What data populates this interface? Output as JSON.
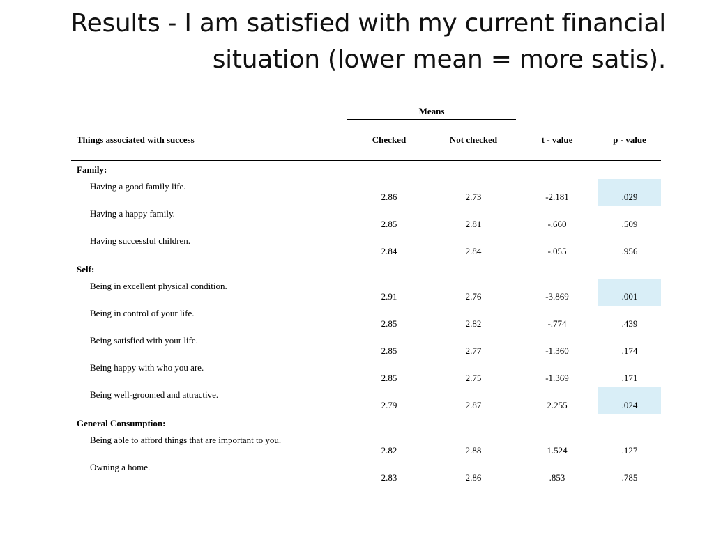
{
  "title": "Results - I am satisfied with my current financial situation (lower mean = more satis).",
  "highlight_color": "#d9eef7",
  "table": {
    "means_label": "Means",
    "headers": {
      "label": "Things associated with success",
      "checked": "Checked",
      "not_checked": "Not checked",
      "t_value": "t - value",
      "p_value": "p - value"
    },
    "groups": [
      {
        "name": "Family:",
        "rows": [
          {
            "label": "Having a good family life.",
            "checked": "2.86",
            "not_checked": "2.73",
            "t": "-2.181",
            "p": ".029",
            "highlight": true
          },
          {
            "label": "Having a happy family.",
            "checked": "2.85",
            "not_checked": "2.81",
            "t": "-.660",
            "p": ".509",
            "highlight": false
          },
          {
            "label": "Having successful children.",
            "checked": "2.84",
            "not_checked": "2.84",
            "t": "-.055",
            "p": ".956",
            "highlight": false
          }
        ]
      },
      {
        "name": "Self:",
        "rows": [
          {
            "label": "Being in excellent physical condition.",
            "checked": "2.91",
            "not_checked": "2.76",
            "t": "-3.869",
            "p": ".001",
            "highlight": true
          },
          {
            "label": "Being in control of your life.",
            "checked": "2.85",
            "not_checked": "2.82",
            "t": "-.774",
            "p": ".439",
            "highlight": false
          },
          {
            "label": "Being satisfied with your life.",
            "checked": "2.85",
            "not_checked": "2.77",
            "t": "-1.360",
            "p": ".174",
            "highlight": false
          },
          {
            "label": "Being happy with who you are.",
            "checked": "2.85",
            "not_checked": "2.75",
            "t": "-1.369",
            "p": ".171",
            "highlight": false
          },
          {
            "label": "Being well-groomed and attractive.",
            "checked": "2.79",
            "not_checked": "2.87",
            "t": "2.255",
            "p": ".024",
            "highlight": true
          }
        ]
      },
      {
        "name": "General Consumption:",
        "rows": [
          {
            "label": "Being able to afford things that are important to you.",
            "checked": "2.82",
            "not_checked": "2.88",
            "t": "1.524",
            "p": ".127",
            "highlight": false
          },
          {
            "label": "Owning a home.",
            "checked": "2.83",
            "not_checked": "2.86",
            "t": ".853",
            "p": ".785",
            "highlight": false
          }
        ]
      }
    ]
  }
}
